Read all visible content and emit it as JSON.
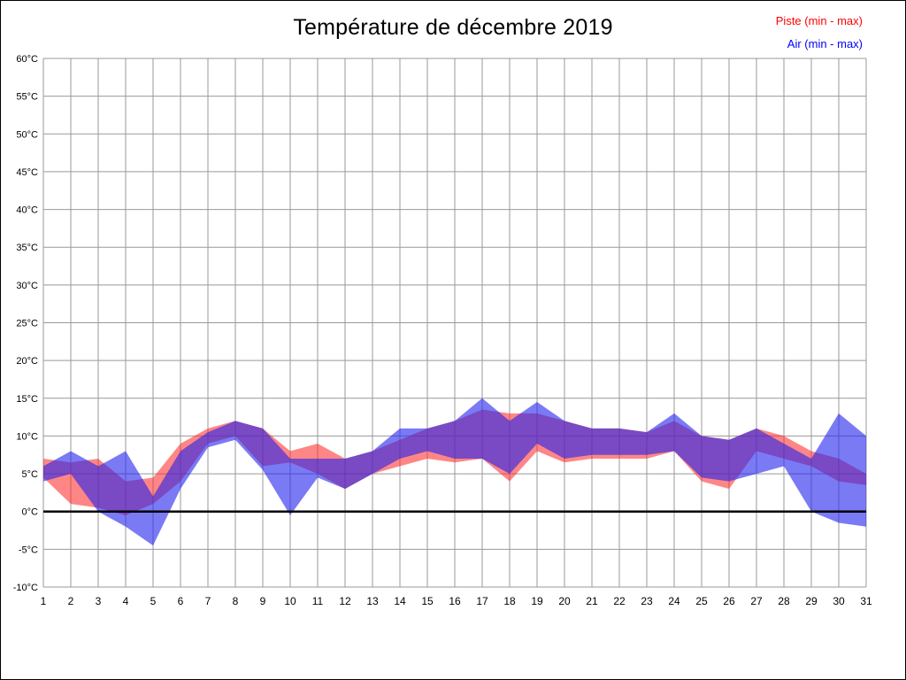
{
  "title": "Température de décembre 2019",
  "legend": [
    {
      "label": "Piste (min - max)",
      "color": "#ff0000"
    },
    {
      "label": "Air (min - max)",
      "color": "#0000ff"
    }
  ],
  "chart_data": {
    "type": "area",
    "title": "Température de décembre 2019",
    "xlabel": "",
    "ylabel": "",
    "x": [
      1,
      2,
      3,
      4,
      5,
      6,
      7,
      8,
      9,
      10,
      11,
      12,
      13,
      14,
      15,
      16,
      17,
      18,
      19,
      20,
      21,
      22,
      23,
      24,
      25,
      26,
      27,
      28,
      29,
      30,
      31
    ],
    "ylim": [
      -10,
      60
    ],
    "ytick_step": 5,
    "ytick_suffix": "°C",
    "grid": true,
    "legend_position": "top-right",
    "zero_line": true,
    "series": [
      {
        "name": "Piste (min - max)",
        "color": "#ff2222",
        "opacity": 0.55,
        "min": [
          4.5,
          1,
          0.5,
          -0.5,
          1,
          4,
          9,
          10,
          6,
          6.5,
          5,
          3,
          5,
          6,
          7,
          6.5,
          7,
          4,
          8,
          6.5,
          7,
          7,
          7,
          8,
          4,
          3,
          8,
          7,
          6,
          4,
          3.5
        ],
        "max": [
          7,
          6.5,
          7,
          4,
          4.5,
          9,
          11,
          12,
          11,
          8,
          9,
          7,
          8,
          9.5,
          11,
          12,
          13.5,
          13,
          13,
          12,
          11,
          11,
          10.5,
          12,
          10,
          9.5,
          11,
          10,
          8,
          7,
          5
        ]
      },
      {
        "name": "Air (min - max)",
        "color": "#2222ee",
        "opacity": 0.6,
        "min": [
          4,
          5,
          0,
          -2,
          -4.5,
          3,
          8.5,
          9.5,
          5.5,
          -0.5,
          4.5,
          3,
          5,
          7,
          8,
          7,
          7,
          5,
          9,
          7,
          7.5,
          7.5,
          7.5,
          8,
          4.5,
          4,
          5,
          6,
          0,
          -1.5,
          -2
        ],
        "max": [
          6,
          8,
          6,
          8,
          2,
          8,
          10.5,
          12,
          11,
          7,
          7,
          7,
          8,
          11,
          11,
          12,
          15,
          12,
          14.5,
          12,
          11,
          11,
          10.5,
          13,
          10,
          9.5,
          11,
          9,
          7,
          13,
          10
        ]
      }
    ]
  }
}
